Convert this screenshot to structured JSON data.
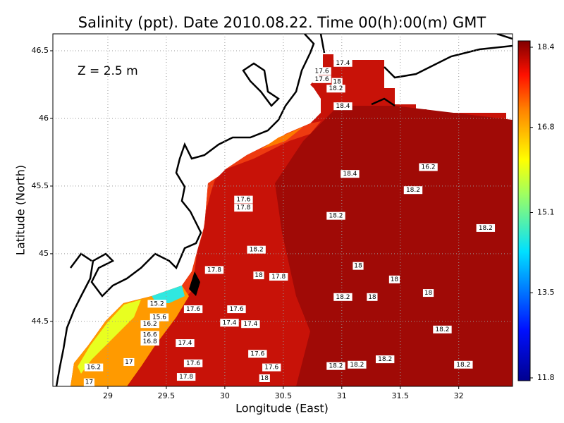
{
  "chart_data": {
    "type": "heatmap",
    "title": "Salinity (ppt). Date 2010.08.22. Time 00(h):00(m) GMT",
    "annotation": "Z = 2.5 m",
    "x_label": "Longitude (East)",
    "y_label": "Latitude (North)",
    "xlim": [
      28.53,
      32.46
    ],
    "ylim": [
      44.02,
      46.625
    ],
    "xticks": [
      29,
      29.5,
      30,
      30.5,
      31,
      31.5,
      32
    ],
    "yticks": [
      44.5,
      45,
      45.5,
      46,
      46.5
    ],
    "grid": true,
    "clim": [
      11.8,
      18.4
    ],
    "cticks": [
      11.8,
      13.5,
      15.1,
      16.8,
      18.4
    ],
    "contour_labels": [
      {
        "value": 17.4,
        "lon": 31.01,
        "lat": 46.41
      },
      {
        "value": 17.6,
        "lon": 30.83,
        "lat": 46.35
      },
      {
        "value": 17.6,
        "lon": 30.83,
        "lat": 46.29
      },
      {
        "value": 18,
        "lon": 30.96,
        "lat": 46.27
      },
      {
        "value": 18.2,
        "lon": 30.95,
        "lat": 46.22
      },
      {
        "value": 18.4,
        "lon": 31.01,
        "lat": 46.09
      },
      {
        "value": 18.4,
        "lon": 31.07,
        "lat": 45.59
      },
      {
        "value": 16.2,
        "lon": 31.74,
        "lat": 45.64
      },
      {
        "value": 18.2,
        "lon": 31.61,
        "lat": 45.47
      },
      {
        "value": 17.6,
        "lon": 30.16,
        "lat": 45.4
      },
      {
        "value": 17.8,
        "lon": 30.16,
        "lat": 45.34
      },
      {
        "value": 18.2,
        "lon": 30.95,
        "lat": 45.28
      },
      {
        "value": 18.2,
        "lon": 32.23,
        "lat": 45.19
      },
      {
        "value": 18.2,
        "lon": 30.27,
        "lat": 45.03
      },
      {
        "value": 17.8,
        "lon": 29.91,
        "lat": 44.88
      },
      {
        "value": 18,
        "lon": 30.29,
        "lat": 44.84
      },
      {
        "value": 17.8,
        "lon": 30.46,
        "lat": 44.83
      },
      {
        "value": 18,
        "lon": 31.14,
        "lat": 44.91
      },
      {
        "value": 18,
        "lon": 31.45,
        "lat": 44.81
      },
      {
        "value": 18,
        "lon": 31.74,
        "lat": 44.71
      },
      {
        "value": 18.2,
        "lon": 31.01,
        "lat": 44.68
      },
      {
        "value": 18,
        "lon": 31.26,
        "lat": 44.68
      },
      {
        "value": 17.6,
        "lon": 29.73,
        "lat": 44.59
      },
      {
        "value": 17.6,
        "lon": 30.1,
        "lat": 44.59
      },
      {
        "value": 17.4,
        "lon": 30.04,
        "lat": 44.49
      },
      {
        "value": 17.4,
        "lon": 30.22,
        "lat": 44.48
      },
      {
        "value": 18.2,
        "lon": 31.86,
        "lat": 44.44
      },
      {
        "value": 17.4,
        "lon": 29.66,
        "lat": 44.34
      },
      {
        "value": 17.6,
        "lon": 30.28,
        "lat": 44.26
      },
      {
        "value": 16.2,
        "lon": 28.88,
        "lat": 44.16
      },
      {
        "value": 17,
        "lon": 29.18,
        "lat": 44.2
      },
      {
        "value": 17.6,
        "lon": 29.73,
        "lat": 44.19
      },
      {
        "value": 17.6,
        "lon": 30.4,
        "lat": 44.16
      },
      {
        "value": 18.2,
        "lon": 30.95,
        "lat": 44.17
      },
      {
        "value": 18.2,
        "lon": 31.13,
        "lat": 44.18
      },
      {
        "value": 18.2,
        "lon": 31.37,
        "lat": 44.22
      },
      {
        "value": 18.2,
        "lon": 32.04,
        "lat": 44.18
      },
      {
        "value": 17.8,
        "lon": 29.67,
        "lat": 44.09
      },
      {
        "value": 18,
        "lon": 30.34,
        "lat": 44.08
      },
      {
        "value": 17,
        "lon": 28.84,
        "lat": 44.05
      },
      {
        "value": 15.2,
        "lon": 29.42,
        "lat": 44.63
      },
      {
        "value": 15.6,
        "lon": 29.44,
        "lat": 44.53
      },
      {
        "value": 16.2,
        "lon": 29.36,
        "lat": 44.48
      },
      {
        "value": 16.6,
        "lon": 29.36,
        "lat": 44.4
      },
      {
        "value": 16.8,
        "lon": 29.36,
        "lat": 44.35
      }
    ]
  }
}
